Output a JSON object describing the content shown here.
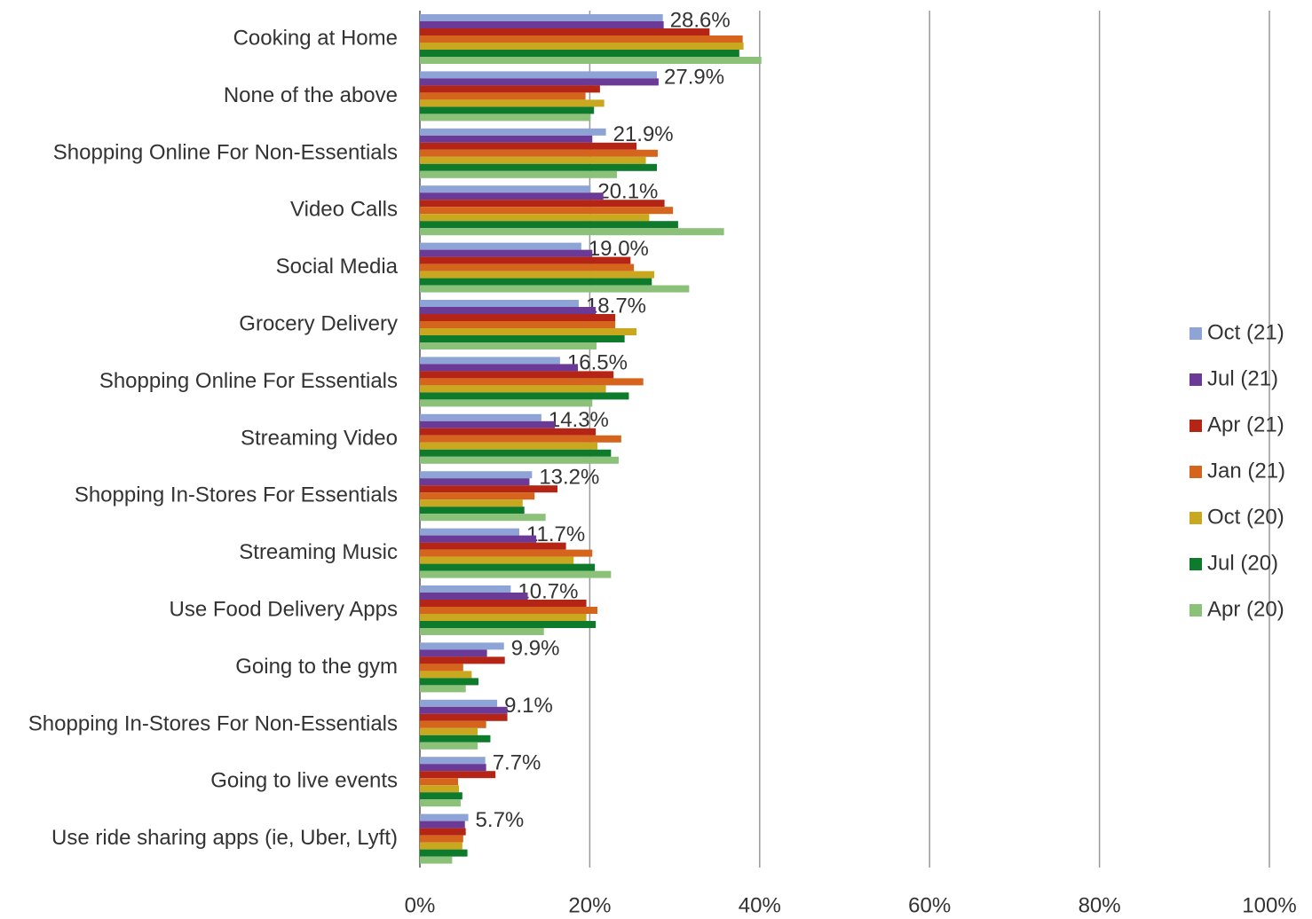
{
  "chart_data": {
    "type": "bar",
    "orientation": "horizontal",
    "categories": [
      "Cooking at Home",
      "None of the above",
      "Shopping Online For Non-Essentials",
      "Video Calls",
      "Social Media",
      "Grocery Delivery",
      "Shopping Online For Essentials",
      "Streaming Video",
      "Shopping In-Stores For Essentials",
      "Streaming Music",
      "Use Food Delivery Apps",
      "Going to the gym",
      "Shopping In-Stores For Non-Essentials",
      "Going to live events",
      "Use ride sharing apps (ie, Uber, Lyft)"
    ],
    "series": [
      {
        "name": "Oct (21)",
        "color": "#8ea4d6",
        "values": [
          28.6,
          27.9,
          21.9,
          20.1,
          19.0,
          18.7,
          16.5,
          14.3,
          13.2,
          11.7,
          10.7,
          9.9,
          9.1,
          7.7,
          5.7
        ],
        "value_labels": [
          "28.6%",
          "27.9%",
          "21.9%",
          "20.1%",
          "19.0%",
          "18.7%",
          "16.5%",
          "14.3%",
          "13.2%",
          "11.7%",
          "10.7%",
          "9.9%",
          "9.1%",
          "7.7%",
          "5.7%"
        ]
      },
      {
        "name": "Jul (21)",
        "color": "#6b3a96",
        "values": [
          28.7,
          28.1,
          20.3,
          21.6,
          20.3,
          20.7,
          18.6,
          15.9,
          12.9,
          13.7,
          12.7,
          7.9,
          10.3,
          7.8,
          5.3
        ]
      },
      {
        "name": "Apr (21)",
        "color": "#b52515",
        "values": [
          34.1,
          21.2,
          25.5,
          28.8,
          24.8,
          23.0,
          22.8,
          20.7,
          16.2,
          17.2,
          19.6,
          10.0,
          10.3,
          8.9,
          5.4
        ]
      },
      {
        "name": "Jan (21)",
        "color": "#d5651d",
        "values": [
          38.0,
          19.5,
          28.0,
          29.8,
          25.2,
          23.0,
          26.3,
          23.7,
          13.5,
          20.3,
          20.9,
          5.1,
          7.8,
          4.5,
          5.1
        ]
      },
      {
        "name": "Oct (20)",
        "color": "#c9a820",
        "values": [
          38.1,
          21.7,
          26.6,
          27.0,
          27.6,
          25.5,
          21.9,
          20.9,
          12.1,
          18.1,
          19.6,
          6.1,
          6.8,
          4.6,
          5.0
        ]
      },
      {
        "name": "Jul (20)",
        "color": "#0e7a2b",
        "values": [
          37.6,
          20.5,
          27.9,
          30.4,
          27.3,
          24.1,
          24.6,
          22.5,
          12.3,
          20.6,
          20.7,
          6.9,
          8.3,
          5.0,
          5.6
        ]
      },
      {
        "name": "Apr (20)",
        "color": "#8cc17a",
        "values": [
          40.2,
          20.1,
          23.2,
          35.8,
          31.7,
          20.8,
          20.3,
          23.4,
          14.8,
          22.5,
          14.6,
          5.4,
          6.8,
          4.8,
          3.8
        ]
      }
    ],
    "xlim": [
      0,
      100
    ],
    "xticks": [
      {
        "value": 0,
        "label": "0%"
      },
      {
        "value": 20,
        "label": "20%"
      },
      {
        "value": 40,
        "label": "40%"
      },
      {
        "value": 60,
        "label": "60%"
      },
      {
        "value": 80,
        "label": "80%"
      },
      {
        "value": 100,
        "label": "100%"
      }
    ],
    "grid": true,
    "legend": "right"
  }
}
